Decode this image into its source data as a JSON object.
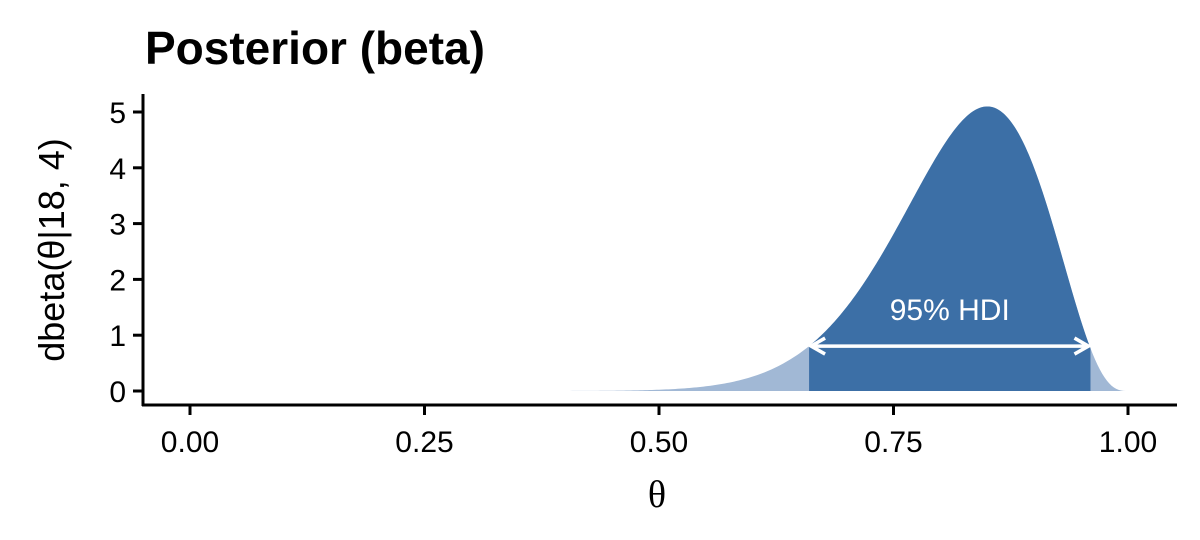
{
  "chart_data": {
    "type": "area",
    "title": "Posterior (beta)",
    "xlabel": "θ",
    "ylabel": "dbeta(θ|18, 4)",
    "distribution": {
      "family": "beta",
      "alpha": 18,
      "beta": 4
    },
    "xlim": [
      0,
      1
    ],
    "ylim": [
      0,
      5
    ],
    "x_ticks": [
      0,
      0.25,
      0.5,
      0.75,
      1
    ],
    "x_tick_labels": [
      "0.00",
      "0.25",
      "0.50",
      "0.75",
      "1.00"
    ],
    "y_ticks": [
      0,
      1,
      2,
      3,
      4,
      5
    ],
    "y_tick_labels": [
      "0",
      "1",
      "2",
      "3",
      "4",
      "5"
    ],
    "hdi": {
      "label": "95% HDI",
      "lower": 0.66,
      "upper": 0.96
    },
    "grid": false,
    "colors": {
      "fill": "#a1b8d5",
      "hdi_fill": "#3c6fa6",
      "arrow": "#ffffff",
      "hdi_label": "#ffffff",
      "axis": "#000000"
    }
  }
}
